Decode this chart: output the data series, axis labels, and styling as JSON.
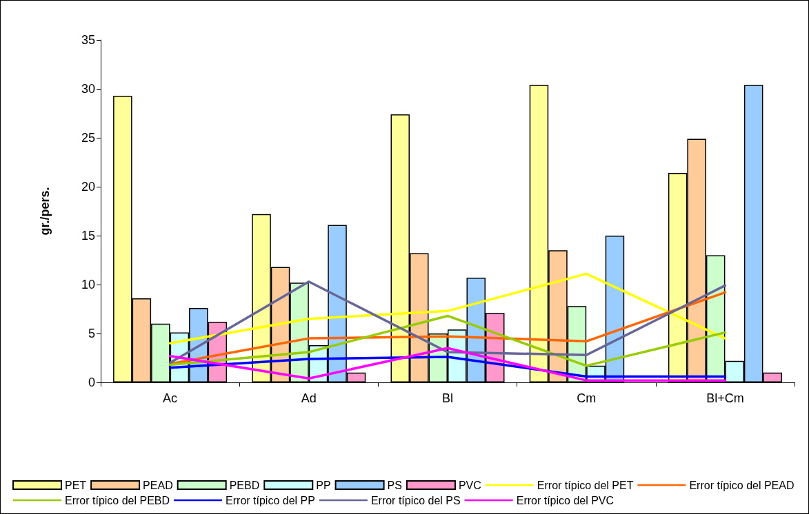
{
  "chart_data": {
    "type": "bar",
    "ylabel": "gr./pers.",
    "categories": [
      "Ac",
      "Ad",
      "Bl",
      "Cm",
      "Bl+Cm"
    ],
    "ylim": [
      0,
      35
    ],
    "yticks": [
      0,
      5,
      10,
      15,
      20,
      25,
      30,
      35
    ],
    "grid": false,
    "legend": "bottom",
    "line_style": "solid",
    "marker": "none",
    "series": [
      {
        "name": "PET",
        "color": "#ffff99",
        "values": [
          29.3,
          17.2,
          27.4,
          30.4,
          21.4
        ]
      },
      {
        "name": "PEAD",
        "color": "#ffcc99",
        "values": [
          8.6,
          11.8,
          13.2,
          13.5,
          24.9
        ]
      },
      {
        "name": "PEBD",
        "color": "#ccffcc",
        "values": [
          6.0,
          10.2,
          5.0,
          7.8,
          13.0
        ]
      },
      {
        "name": "PP",
        "color": "#ccffff",
        "values": [
          5.1,
          3.8,
          5.4,
          1.7,
          2.2
        ]
      },
      {
        "name": "PS",
        "color": "#99ccff",
        "values": [
          7.6,
          16.1,
          10.7,
          15.0,
          30.4
        ]
      },
      {
        "name": "PVC",
        "color": "#ff99cc",
        "values": [
          6.2,
          1.0,
          7.1,
          null,
          1.0
        ]
      },
      {
        "name": "Error típico del PET",
        "type": "line",
        "color": "#ffff00",
        "values": [
          4.0,
          6.5,
          7.3,
          11.1,
          4.5
        ]
      },
      {
        "name": "Error típico del PEAD",
        "type": "line",
        "color": "#ff6600",
        "values": [
          1.9,
          4.5,
          4.7,
          4.2,
          9.2
        ]
      },
      {
        "name": "Error típico del PEBD",
        "type": "line",
        "color": "#99cc00",
        "values": [
          1.8,
          3.1,
          6.8,
          1.7,
          5.1
        ]
      },
      {
        "name": "Error típico del PP",
        "type": "line",
        "color": "#0000ff",
        "values": [
          1.5,
          2.4,
          2.6,
          0.6,
          0.6
        ]
      },
      {
        "name": "Error típico del PS",
        "type": "line",
        "color": "#666699",
        "values": [
          2.0,
          10.3,
          3.1,
          2.8,
          9.9
        ]
      },
      {
        "name": "Error típico del PVC",
        "type": "line",
        "color": "#ff00ff",
        "values": [
          2.7,
          0.4,
          3.5,
          0.2,
          0.2
        ]
      }
    ]
  }
}
